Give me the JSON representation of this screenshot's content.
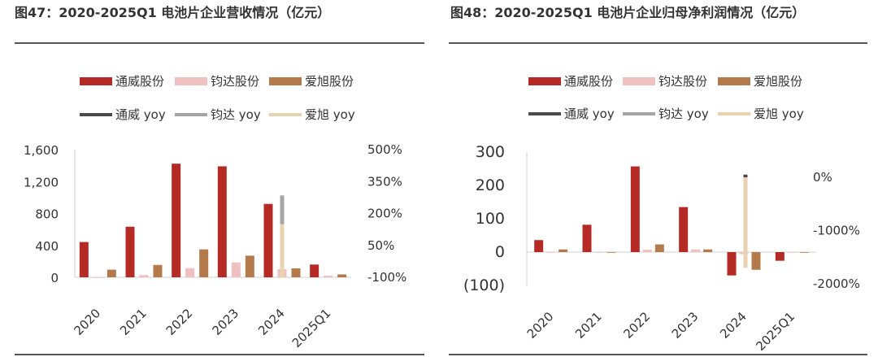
{
  "left": {
    "title": "图47：2020-2025Q1 电池片企业营收情况（亿元）",
    "chart_data": {
      "type": "bar",
      "categories": [
        "2020",
        "2021",
        "2022",
        "2023",
        "2024",
        "2025Q1"
      ],
      "series": [
        {
          "name": "通威股份",
          "type": "bar",
          "axis": "left",
          "color": "#b52a24",
          "values": [
            442,
            634,
            1424,
            1391,
            920,
            160
          ]
        },
        {
          "name": "钧达股份",
          "type": "bar",
          "axis": "left",
          "color": "#eec0c0",
          "values": [
            0,
            28,
            115,
            186,
            100,
            20
          ]
        },
        {
          "name": "爱旭股份",
          "type": "bar",
          "axis": "left",
          "color": "#b57a4c",
          "values": [
            96,
            155,
            350,
            271,
            112,
            36
          ]
        },
        {
          "name": "通威 yoy",
          "type": "line",
          "axis": "right",
          "color": "#4a4a4a",
          "values": [
            null,
            null,
            null,
            null,
            null,
            null
          ]
        },
        {
          "name": "钧达 yoy",
          "type": "line",
          "axis": "right",
          "color": "#a5a5a5",
          "values": [
            null,
            null,
            null,
            null,
            285,
            null
          ]
        },
        {
          "name": "爱旭 yoy",
          "type": "line",
          "axis": "right",
          "color": "#e8d3ae",
          "values": [
            null,
            null,
            null,
            null,
            150,
            null
          ]
        }
      ],
      "yleft": {
        "ticks": [
          "0",
          "400",
          "800",
          "1,200",
          "1,600"
        ],
        "min": 0,
        "max": 1600
      },
      "yright": {
        "ticks": [
          "-100%",
          "50%",
          "200%",
          "350%",
          "500%"
        ],
        "min": -100,
        "max": 500
      },
      "legend": {
        "placement": "top",
        "rows": [
          [
            "通威股份",
            "钧达股份",
            "爱旭股份"
          ],
          [
            "通威 yoy",
            "钧达 yoy",
            "爱旭 yoy"
          ]
        ]
      },
      "grid": false
    }
  },
  "right": {
    "title": "图48：2020-2025Q1 电池片企业归母净利润情况（亿元）",
    "chart_data": {
      "type": "bar",
      "categories": [
        "2020",
        "2021",
        "2022",
        "2023",
        "2024",
        "2025Q1"
      ],
      "series": [
        {
          "name": "通威股份",
          "type": "bar",
          "axis": "left",
          "color": "#b52a24",
          "values": [
            36,
            82,
            257,
            135,
            -70,
            -26
          ]
        },
        {
          "name": "钧达股份",
          "type": "bar",
          "axis": "left",
          "color": "#eec0c0",
          "values": [
            0,
            0,
            7,
            8,
            -6,
            -1
          ]
        },
        {
          "name": "爱旭股份",
          "type": "bar",
          "axis": "left",
          "color": "#b57a4c",
          "values": [
            8,
            -1,
            23,
            8,
            -53,
            -2
          ]
        },
        {
          "name": "通威 yoy",
          "type": "line",
          "axis": "right",
          "color": "#4a4a4a",
          "values": [
            null,
            null,
            null,
            null,
            50,
            null
          ]
        },
        {
          "name": "钧达 yoy",
          "type": "line",
          "axis": "right",
          "color": "#a5a5a5",
          "values": [
            null,
            null,
            null,
            null,
            null,
            null
          ]
        },
        {
          "name": "爱旭 yoy",
          "type": "line",
          "axis": "right",
          "color": "#e8d3ae",
          "values": [
            null,
            null,
            null,
            null,
            -1700,
            null
          ]
        }
      ],
      "yleft": {
        "ticks": [
          "(100)",
          "0",
          "100",
          "200",
          "300"
        ],
        "tick_colors": [
          "#ff0000",
          "#333333",
          "#333333",
          "#333333",
          "#333333"
        ],
        "min": -100,
        "max": 300
      },
      "yright": {
        "ticks": [
          "-2000%",
          "-1000%",
          "0%"
        ],
        "min": -2000,
        "max": 0
      },
      "legend": {
        "placement": "top",
        "rows": [
          [
            "通威股份",
            "钧达股份",
            "爱旭股份"
          ],
          [
            "通威 yoy",
            "钧达 yoy",
            "爱旭 yoy"
          ]
        ]
      },
      "grid": false
    }
  }
}
